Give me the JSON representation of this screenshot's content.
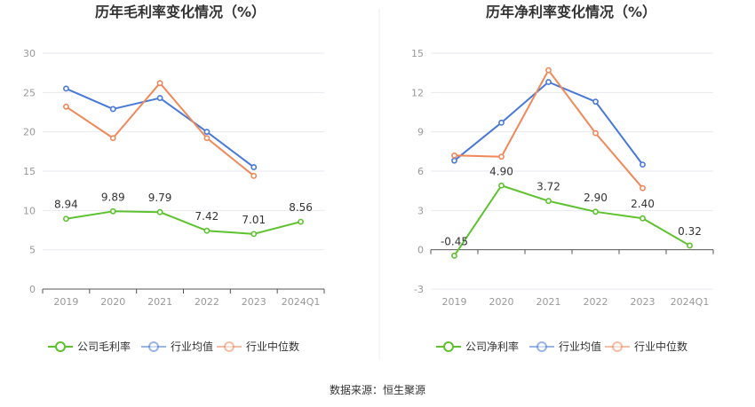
{
  "chart_data": [
    {
      "type": "line",
      "title": "历年毛利率变化情况（%）",
      "categories": [
        "2019",
        "2020",
        "2021",
        "2022",
        "2023",
        "2024Q1"
      ],
      "ylim": [
        0,
        30
      ],
      "yticks": [
        0,
        5,
        10,
        15,
        20,
        25,
        30
      ],
      "grid": true,
      "legend_position": "bottom",
      "series": [
        {
          "name": "公司毛利率",
          "color": "#5dc22e",
          "values": [
            8.94,
            9.89,
            9.79,
            7.42,
            7.01,
            8.56
          ],
          "labels": [
            "8.94",
            "9.89",
            "9.79",
            "7.42",
            "7.01",
            "8.56"
          ]
        },
        {
          "name": "行业均值",
          "color": "#4879d9",
          "values": [
            25.5,
            22.9,
            24.3,
            20.0,
            15.5,
            null
          ]
        },
        {
          "name": "行业中位数",
          "color": "#f0885a",
          "values": [
            23.2,
            19.2,
            26.2,
            19.2,
            14.4,
            null
          ]
        }
      ]
    },
    {
      "type": "line",
      "title": "历年净利率变化情况（%）",
      "categories": [
        "2019",
        "2020",
        "2021",
        "2022",
        "2023",
        "2024Q1"
      ],
      "ylim": [
        -3,
        15
      ],
      "yticks": [
        -3,
        0,
        3,
        6,
        9,
        12,
        15
      ],
      "grid": true,
      "legend_position": "bottom",
      "series": [
        {
          "name": "公司净利率",
          "color": "#5dc22e",
          "values": [
            -0.45,
            4.9,
            3.72,
            2.9,
            2.4,
            0.32
          ],
          "labels": [
            "-0.45",
            "4.90",
            "3.72",
            "2.90",
            "2.40",
            "0.32"
          ]
        },
        {
          "name": "行业均值",
          "color": "#4879d9",
          "values": [
            6.8,
            9.7,
            12.8,
            11.3,
            6.5,
            null
          ]
        },
        {
          "name": "行业中位数",
          "color": "#f0885a",
          "values": [
            7.2,
            7.1,
            13.7,
            8.9,
            4.7,
            null
          ]
        }
      ]
    }
  ],
  "footer": {
    "source": "数据来源：恒生聚源"
  }
}
